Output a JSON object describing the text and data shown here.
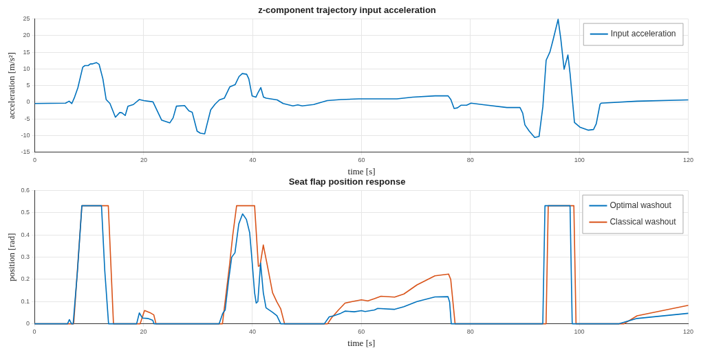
{
  "chart_data": [
    {
      "type": "line",
      "title": "z-component trajectory input acceleration",
      "xlabel": "time [s]",
      "ylabel": "acceleration [m/s²]",
      "xlim": [
        0,
        120
      ],
      "xticks": [
        0,
        20,
        40,
        60,
        80,
        100,
        120
      ],
      "ylim": [
        -15,
        25
      ],
      "yticks": [
        -15,
        -10,
        -5,
        0,
        5,
        10,
        15,
        20,
        25
      ],
      "grid": true,
      "legend": "top right",
      "series": [
        {
          "name": "Input acceleration",
          "color": "#0072bd",
          "x": [
            0,
            5.65,
            6.3,
            6.8,
            7.3,
            7.9,
            8.8,
            9.2,
            9.8,
            10.2,
            10.6,
            11.3,
            11.8,
            12.5,
            13.1,
            13.8,
            14.8,
            15.6,
            16,
            16.6,
            17.1,
            18.1,
            19.2,
            20,
            21.7,
            23.3,
            24.8,
            25.4,
            26,
            27.5,
            28.3,
            28.9,
            29.8,
            30.4,
            31.2,
            31.6,
            32.3,
            33.1,
            33.9,
            34.8,
            35.8,
            36.8,
            37.5,
            38.1,
            38.9,
            39.3,
            39.9,
            40.6,
            41,
            41.5,
            42,
            42.5,
            44.5,
            45.6,
            47.4,
            48.3,
            49.1,
            51.2,
            53.7,
            56.2,
            59.5,
            62.4,
            66.5,
            69.4,
            73.5,
            75.9,
            76.4,
            77,
            77.6,
            78.3,
            79.3,
            80.1,
            82.6,
            86.7,
            89.1,
            89.6,
            90,
            90.8,
            91.8,
            92.6,
            93.3,
            93.9,
            94.6,
            95.2,
            96.1,
            96.6,
            97.2,
            97.9,
            98.3,
            99.1,
            100.1,
            101.6,
            102.6,
            103.1,
            103.8,
            104,
            110.6,
            120
          ],
          "values": [
            -0.4,
            -0.3,
            0.3,
            -0.4,
            1.5,
            4.3,
            10.5,
            11,
            11,
            11.5,
            11.5,
            11.9,
            11.4,
            7,
            0.8,
            -0.4,
            -4.5,
            -3.1,
            -3.2,
            -4,
            -1.2,
            -0.7,
            0.8,
            0.5,
            0.1,
            -5.4,
            -6.2,
            -4.7,
            -1.2,
            -1,
            -2.6,
            -3,
            -8.7,
            -9.3,
            -9.5,
            -6.8,
            -2.3,
            -0.6,
            0.7,
            1.2,
            4.6,
            5.3,
            7.7,
            8.6,
            8.4,
            7,
            1.9,
            1.5,
            2.9,
            4.4,
            1.5,
            1.2,
            0.7,
            -0.4,
            -1.1,
            -0.8,
            -1.1,
            -0.7,
            0.5,
            0.8,
            1,
            1,
            1,
            1.5,
            1.9,
            1.9,
            0.8,
            -1.9,
            -1.7,
            -0.9,
            -0.9,
            -0.3,
            -0.8,
            -1.6,
            -1.6,
            -3.3,
            -6.8,
            -8.7,
            -10.6,
            -10.3,
            -1.3,
            12.6,
            15.1,
            18.9,
            24.9,
            18.9,
            9.9,
            14.2,
            8.5,
            -6.1,
            -7.5,
            -8.4,
            -8.2,
            -6.5,
            -0.6,
            -0.3,
            0.3,
            0.7
          ]
        }
      ]
    },
    {
      "type": "line",
      "title": "Seat flap position response",
      "xlabel": "time [s]",
      "ylabel": "position [rad]",
      "xlim": [
        0,
        120
      ],
      "xticks": [
        0,
        20,
        40,
        60,
        80,
        100,
        120
      ],
      "ylim": [
        0,
        0.6
      ],
      "yticks": [
        0,
        0.1,
        0.2,
        0.3,
        0.4,
        0.5,
        0.6
      ],
      "grid": true,
      "legend": "top right",
      "series": [
        {
          "name": "Optimal washout",
          "color": "#0072bd",
          "x": [
            0,
            6.07,
            6.4,
            6.8,
            7.1,
            7.9,
            8.7,
            12.3,
            12.9,
            13.6,
            18.75,
            19.25,
            19.8,
            20.8,
            21.7,
            21.95,
            33.9,
            34.55,
            35,
            35.6,
            36.2,
            36.8,
            37.5,
            38.2,
            38.9,
            39.5,
            39.9,
            40.4,
            40.7,
            41,
            41.5,
            42,
            42.5,
            43.7,
            44.5,
            45.2,
            53.2,
            54.1,
            54.9,
            56.2,
            57,
            58.7,
            60,
            60.7,
            62.4,
            63,
            66.1,
            67.8,
            70.2,
            73.5,
            75.9,
            76.2,
            76.5,
            93.3,
            93.7,
            98.3,
            98.7,
            107.3,
            110.6,
            120
          ],
          "values": [
            0,
            0,
            0.019,
            0,
            0,
            0.24,
            0.532,
            0.532,
            0.24,
            0,
            0,
            0.049,
            0.026,
            0.024,
            0.016,
            0,
            0,
            0.047,
            0.062,
            0.19,
            0.3,
            0.32,
            0.45,
            0.495,
            0.47,
            0.41,
            0.295,
            0.14,
            0.093,
            0.1,
            0.274,
            0.14,
            0.072,
            0.052,
            0.036,
            0,
            0,
            0.031,
            0.036,
            0.047,
            0.057,
            0.054,
            0.059,
            0.055,
            0.062,
            0.069,
            0.065,
            0.077,
            0.1,
            0.121,
            0.122,
            0.098,
            0,
            0,
            0.532,
            0.532,
            0,
            0,
            0.024,
            0.047
          ]
        },
        {
          "name": "Classical washout",
          "color": "#d95319",
          "x": [
            0,
            7.2,
            8.7,
            13.55,
            14.5,
            19.4,
            20.2,
            21.2,
            21.9,
            22.3,
            34.5,
            35.8,
            36.4,
            37.1,
            40.4,
            41.1,
            41.4,
            42,
            42.9,
            43.7,
            44.5,
            45.2,
            45.9,
            53.8,
            54.5,
            55.8,
            57,
            58.3,
            60,
            61.2,
            62.4,
            63.6,
            66.1,
            67.8,
            70.2,
            73.5,
            76,
            76.4,
            77.2,
            93.9,
            94.3,
            99,
            99.4,
            108.2,
            110.6,
            120
          ],
          "values": [
            0,
            0,
            0.532,
            0.532,
            0,
            0,
            0.06,
            0.05,
            0.04,
            0,
            0,
            0.264,
            0.4,
            0.532,
            0.532,
            0.259,
            0.262,
            0.355,
            0.243,
            0.14,
            0.098,
            0.067,
            0,
            0,
            0.026,
            0.062,
            0.093,
            0.1,
            0.108,
            0.103,
            0.113,
            0.124,
            0.12,
            0.134,
            0.175,
            0.216,
            0.224,
            0.2,
            0,
            0,
            0.532,
            0.532,
            0,
            0,
            0.036,
            0.083
          ]
        }
      ]
    }
  ]
}
